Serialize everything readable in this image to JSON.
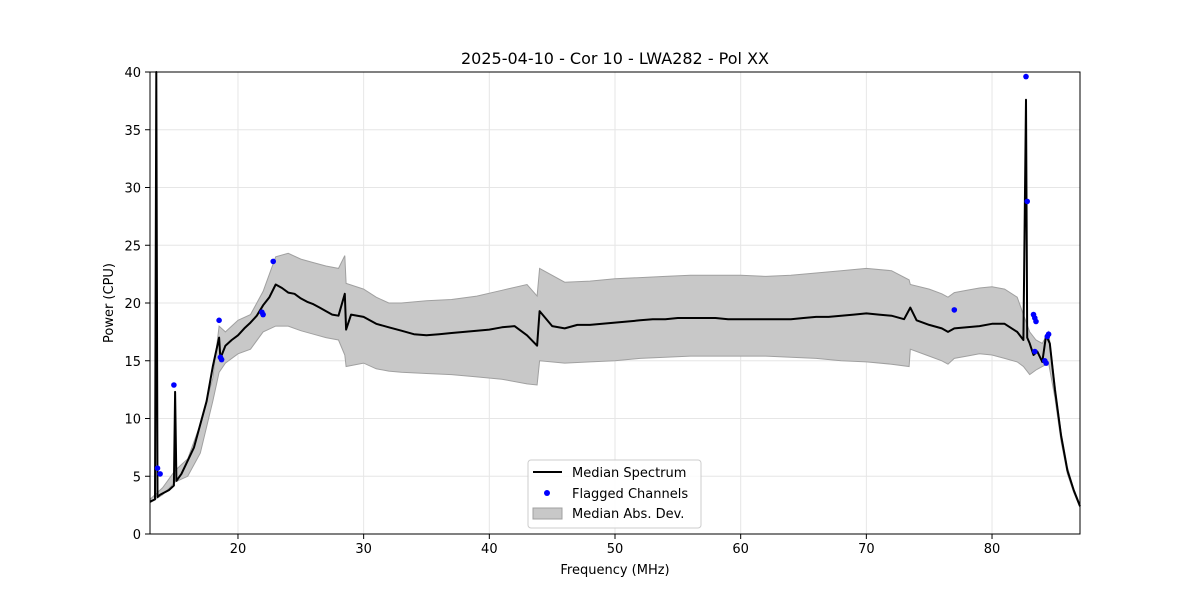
{
  "chart_data": {
    "type": "line",
    "title": "2025-04-10 - Cor 10 - LWA282 - Pol XX",
    "xlabel": "Frequency (MHz)",
    "ylabel": "Power (CPU)",
    "xlim": [
      13.0,
      87.0
    ],
    "ylim": [
      0,
      40
    ],
    "xticks": [
      20,
      30,
      40,
      50,
      60,
      70,
      80
    ],
    "yticks": [
      0,
      5,
      10,
      15,
      20,
      25,
      30,
      35,
      40
    ],
    "grid": true,
    "legend_position": "lower-center",
    "legend": [
      "Median Spectrum",
      "Flagged Channels",
      "Median Abs. Dev."
    ],
    "colors": {
      "median": "#000000",
      "flagged": "#0000ff",
      "band": "#c8c8c8",
      "band_edge": "#a0a0a0",
      "grid": "#e6e6e6"
    },
    "series": [
      {
        "name": "Median Spectrum",
        "x": [
          13.0,
          13.4,
          13.5,
          13.6,
          13.8,
          14.5,
          14.9,
          15.0,
          15.1,
          15.5,
          16.5,
          17.5,
          18.0,
          18.5,
          18.6,
          19.0,
          19.5,
          20.0,
          20.5,
          21.0,
          21.5,
          22.0,
          22.5,
          23.0,
          23.5,
          24.0,
          24.5,
          25.0,
          25.5,
          26.0,
          26.5,
          27.0,
          27.5,
          28.0,
          28.5,
          28.6,
          29.0,
          30.0,
          31.0,
          32.0,
          33.0,
          34.0,
          35.0,
          36.0,
          37.0,
          38.0,
          39.0,
          40.0,
          41.0,
          42.0,
          43.0,
          43.8,
          44.0,
          45.0,
          46.0,
          47.0,
          48.0,
          49.0,
          50.0,
          51.0,
          52.0,
          53.0,
          54.0,
          55.0,
          56.0,
          57.0,
          58.0,
          59.0,
          60.0,
          61.0,
          62.0,
          63.0,
          64.0,
          65.0,
          66.0,
          67.0,
          68.0,
          69.0,
          70.0,
          71.0,
          72.0,
          73.0,
          73.5,
          74.0,
          75.0,
          76.0,
          76.5,
          77.0,
          78.0,
          79.0,
          80.0,
          81.0,
          82.0,
          82.5,
          82.7,
          82.8,
          83.0,
          83.3,
          83.6,
          84.0,
          84.3,
          84.6,
          85.0,
          85.5,
          86.0,
          86.5,
          87.0
        ],
        "y": [
          2.8,
          3.0,
          40.0,
          3.2,
          3.4,
          3.8,
          4.2,
          12.3,
          4.6,
          5.2,
          7.5,
          11.5,
          14.5,
          17.0,
          15.2,
          16.3,
          16.8,
          17.2,
          17.8,
          18.3,
          18.9,
          19.8,
          20.5,
          21.6,
          21.3,
          20.9,
          20.8,
          20.4,
          20.1,
          19.9,
          19.6,
          19.3,
          19.0,
          18.9,
          20.8,
          17.7,
          19.0,
          18.8,
          18.2,
          17.9,
          17.6,
          17.3,
          17.2,
          17.3,
          17.4,
          17.5,
          17.6,
          17.7,
          17.9,
          18.0,
          17.2,
          16.3,
          19.3,
          18.0,
          17.8,
          18.1,
          18.1,
          18.2,
          18.3,
          18.4,
          18.5,
          18.6,
          18.6,
          18.7,
          18.7,
          18.7,
          18.7,
          18.6,
          18.6,
          18.6,
          18.6,
          18.6,
          18.6,
          18.7,
          18.8,
          18.8,
          18.9,
          19.0,
          19.1,
          19.0,
          18.9,
          18.6,
          19.6,
          18.5,
          18.1,
          17.8,
          17.5,
          17.8,
          17.9,
          18.0,
          18.2,
          18.2,
          17.5,
          16.8,
          37.6,
          17.0,
          16.5,
          15.5,
          15.8,
          14.9,
          17.2,
          16.5,
          12.5,
          8.5,
          5.5,
          3.8,
          2.4
        ]
      },
      {
        "name": "Median Abs. Dev.",
        "x": [
          13.0,
          14.0,
          15.0,
          16.0,
          17.0,
          18.0,
          18.5,
          19.0,
          20.0,
          21.0,
          22.0,
          23.0,
          24.0,
          25.0,
          26.0,
          27.0,
          28.0,
          28.5,
          28.6,
          30.0,
          31.0,
          32.0,
          33.0,
          35.0,
          37.0,
          39.0,
          41.0,
          43.0,
          43.8,
          44.0,
          46.0,
          48.0,
          50.0,
          52.0,
          54.0,
          56.0,
          58.0,
          60.0,
          62.0,
          64.0,
          66.0,
          68.0,
          70.0,
          72.0,
          73.4,
          73.5,
          75.0,
          76.0,
          76.5,
          77.0,
          78.0,
          79.0,
          80.0,
          81.0,
          82.0,
          82.5,
          83.0,
          83.5,
          84.0,
          84.5,
          85.0,
          85.5,
          86.0,
          86.5,
          87.0
        ],
        "upper": [
          3.0,
          4.0,
          5.5,
          6.5,
          9.5,
          13.5,
          18.0,
          17.5,
          18.5,
          19.0,
          21.0,
          24.0,
          24.3,
          23.8,
          23.5,
          23.2,
          23.0,
          24.1,
          21.7,
          21.2,
          20.5,
          20.0,
          20.0,
          20.2,
          20.3,
          20.6,
          21.1,
          21.6,
          20.6,
          23.0,
          21.8,
          21.9,
          22.1,
          22.2,
          22.3,
          22.4,
          22.4,
          22.4,
          22.3,
          22.4,
          22.6,
          22.8,
          23.0,
          22.8,
          22.0,
          21.6,
          21.2,
          20.8,
          20.5,
          20.9,
          21.1,
          21.3,
          21.4,
          21.2,
          20.5,
          19.0,
          17.5,
          16.8,
          16.5,
          17.5,
          13.0,
          8.8,
          5.8,
          3.9,
          2.6
        ],
        "lower": [
          2.7,
          3.4,
          4.5,
          5.0,
          7.0,
          11.5,
          14.0,
          14.8,
          15.6,
          16.0,
          17.5,
          18.0,
          18.0,
          17.6,
          17.3,
          17.0,
          16.8,
          15.5,
          14.5,
          14.8,
          14.3,
          14.1,
          14.0,
          13.9,
          13.8,
          13.6,
          13.4,
          13.0,
          12.9,
          15.0,
          14.8,
          14.9,
          15.0,
          15.2,
          15.3,
          15.4,
          15.4,
          15.4,
          15.4,
          15.3,
          15.2,
          15.0,
          14.9,
          14.7,
          14.5,
          16.0,
          15.4,
          15.0,
          14.7,
          15.2,
          15.4,
          15.6,
          15.5,
          15.2,
          14.9,
          14.5,
          13.8,
          14.2,
          14.5,
          14.8,
          11.8,
          8.0,
          5.2,
          3.6,
          2.3
        ]
      },
      {
        "name": "Flagged Channels",
        "x": [
          13.6,
          13.8,
          14.9,
          18.5,
          18.6,
          18.7,
          21.9,
          22.0,
          22.8,
          77.0,
          82.7,
          82.8,
          83.3,
          83.4,
          83.5,
          83.4,
          84.2,
          84.4,
          84.5,
          84.3
        ],
        "y": [
          5.7,
          5.2,
          12.9,
          18.5,
          15.3,
          15.1,
          19.2,
          19.0,
          23.6,
          19.4,
          39.6,
          28.8,
          19.0,
          18.7,
          18.4,
          15.8,
          15.0,
          17.1,
          17.3,
          14.8
        ]
      }
    ]
  }
}
